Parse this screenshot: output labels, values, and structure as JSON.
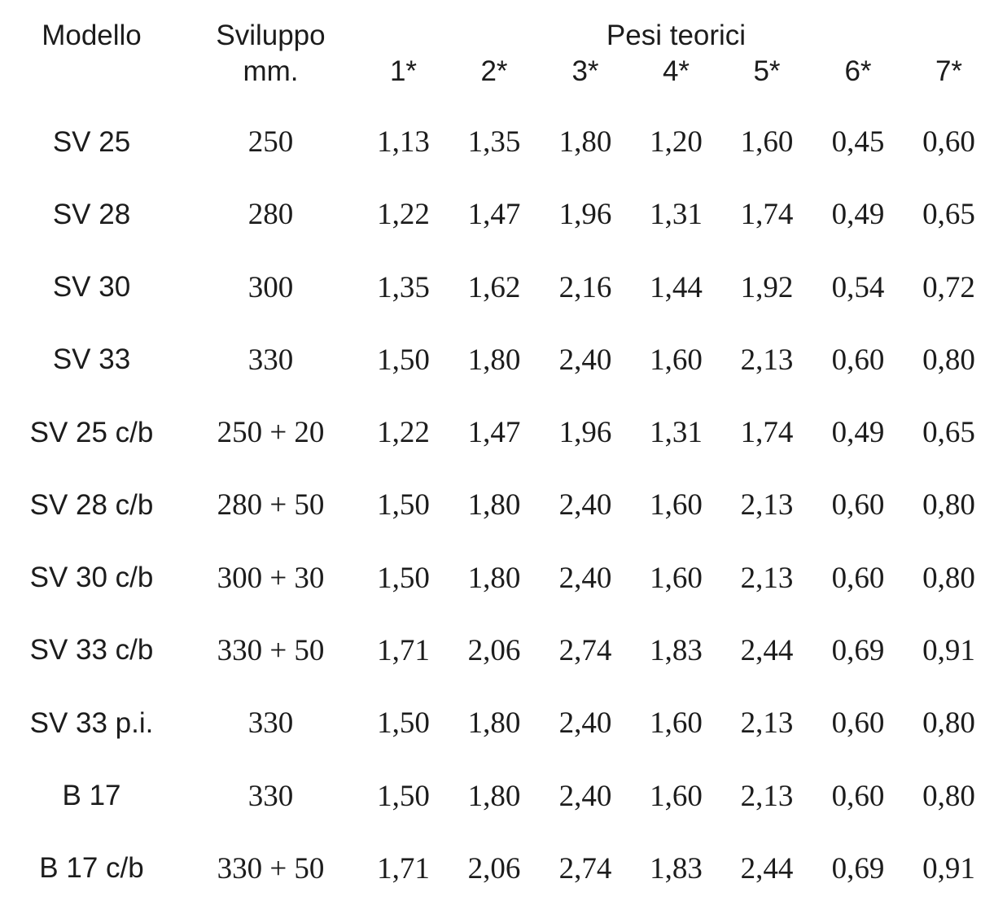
{
  "table": {
    "title": "Pesi teorici",
    "header": {
      "modello": "Modello",
      "sviluppo": "Sviluppo",
      "mm": "mm.",
      "pesi_teorici": "Pesi teorici",
      "weight_cols": [
        "1*",
        "2*",
        "3*",
        "4*",
        "5*",
        "6*",
        "7*"
      ]
    },
    "rows": [
      {
        "modello": "SV 25",
        "sviluppo": "250",
        "pesi": [
          "1,13",
          "1,35",
          "1,80",
          "1,20",
          "1,60",
          "0,45",
          "0,60"
        ]
      },
      {
        "modello": "SV 28",
        "sviluppo": "280",
        "pesi": [
          "1,22",
          "1,47",
          "1,96",
          "1,31",
          "1,74",
          "0,49",
          "0,65"
        ]
      },
      {
        "modello": "SV 30",
        "sviluppo": "300",
        "pesi": [
          "1,35",
          "1,62",
          "2,16",
          "1,44",
          "1,92",
          "0,54",
          "0,72"
        ]
      },
      {
        "modello": "SV 33",
        "sviluppo": "330",
        "pesi": [
          "1,50",
          "1,80",
          "2,40",
          "1,60",
          "2,13",
          "0,60",
          "0,80"
        ]
      },
      {
        "modello": "SV 25 c/b",
        "sviluppo": "250 + 20",
        "pesi": [
          "1,22",
          "1,47",
          "1,96",
          "1,31",
          "1,74",
          "0,49",
          "0,65"
        ]
      },
      {
        "modello": "SV 28 c/b",
        "sviluppo": "280 + 50",
        "pesi": [
          "1,50",
          "1,80",
          "2,40",
          "1,60",
          "2,13",
          "0,60",
          "0,80"
        ]
      },
      {
        "modello": "SV 30 c/b",
        "sviluppo": "300 + 30",
        "pesi": [
          "1,50",
          "1,80",
          "2,40",
          "1,60",
          "2,13",
          "0,60",
          "0,80"
        ]
      },
      {
        "modello": "SV 33 c/b",
        "sviluppo": "330 + 50",
        "pesi": [
          "1,71",
          "2,06",
          "2,74",
          "1,83",
          "2,44",
          "0,69",
          "0,91"
        ]
      },
      {
        "modello": "SV 33 p.i.",
        "sviluppo": "330",
        "pesi": [
          "1,50",
          "1,80",
          "2,40",
          "1,60",
          "2,13",
          "0,60",
          "0,80"
        ]
      },
      {
        "modello": "B 17",
        "sviluppo": "330",
        "pesi": [
          "1,50",
          "1,80",
          "2,40",
          "1,60",
          "2,13",
          "0,60",
          "0,80"
        ]
      },
      {
        "modello": "B 17 c/b",
        "sviluppo": "330 + 50",
        "pesi": [
          "1,71",
          "2,06",
          "2,74",
          "1,83",
          "2,44",
          "0,69",
          "0,91"
        ]
      }
    ]
  }
}
